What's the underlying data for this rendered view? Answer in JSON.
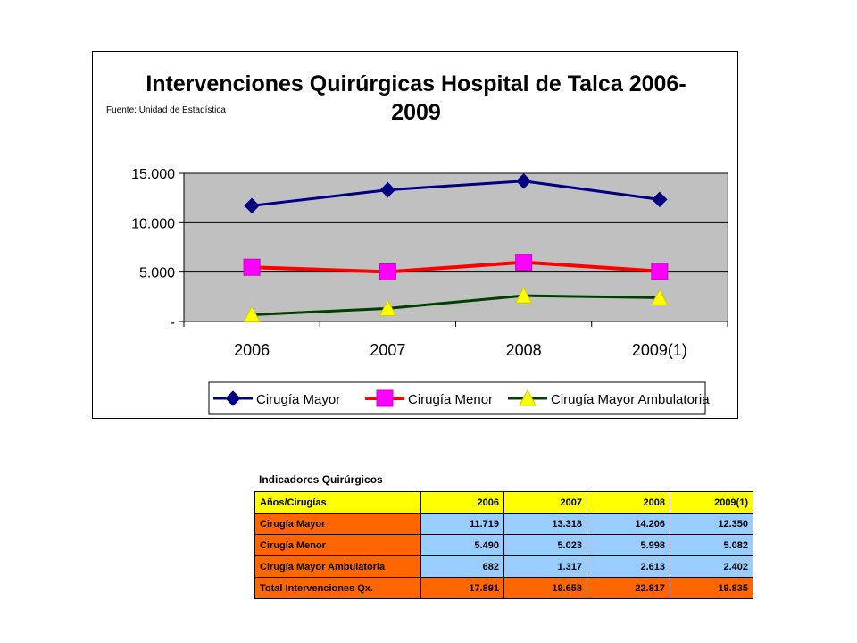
{
  "chart_data": {
    "type": "line",
    "title": "Intervenciones Quirúrgicas Hospital de Talca 2006-2009",
    "title_lines": [
      "Intervenciones Quirúrgicas Hospital de Talca 2006-",
      "2009"
    ],
    "source_note": "Fuente: Unidad de Estadística",
    "categories": [
      "2006",
      "2007",
      "2008",
      "2009(1)"
    ],
    "ylim": [
      0,
      15000
    ],
    "yticks": [
      0,
      5000,
      10000,
      15000
    ],
    "ytick_labels": [
      "-",
      "5.000",
      "10.000",
      "15.000"
    ],
    "grid": "horizontal",
    "legend_position": "bottom",
    "plot_background": "#c0c0c0",
    "series": [
      {
        "name": "Cirugía Mayor",
        "values": [
          11719,
          13318,
          14206,
          12350
        ],
        "color": "#000080",
        "marker": "diamond"
      },
      {
        "name": "Cirugía Menor",
        "values": [
          5490,
          5023,
          5998,
          5082
        ],
        "color": "#ff0000",
        "marker": "square",
        "marker_color": "#ff00ff"
      },
      {
        "name": "Cirugía Mayor Ambulatoria",
        "values": [
          682,
          1317,
          2613,
          2402
        ],
        "color": "#004000",
        "marker": "triangle",
        "marker_color": "#ffff00"
      }
    ]
  },
  "table": {
    "caption": "Indicadores Quirúrgicos",
    "headers": [
      "Años/Cirugías",
      "2006",
      "2007",
      "2008",
      "2009(1)"
    ],
    "rows": [
      {
        "label": "Cirugía Mayor",
        "values": [
          "11.719",
          "13.318",
          "14.206",
          "12.350"
        ]
      },
      {
        "label": "Cirugía Menor",
        "values": [
          "5.490",
          "5.023",
          "5.998",
          "5.082"
        ]
      },
      {
        "label": "Cirugía Mayor Ambulatoria",
        "values": [
          "682",
          "1.317",
          "2.613",
          "2.402"
        ]
      },
      {
        "label": "Total Intervenciones  Qx.",
        "values": [
          "17.891",
          "19.658",
          "22.817",
          "19.835"
        ]
      }
    ]
  }
}
